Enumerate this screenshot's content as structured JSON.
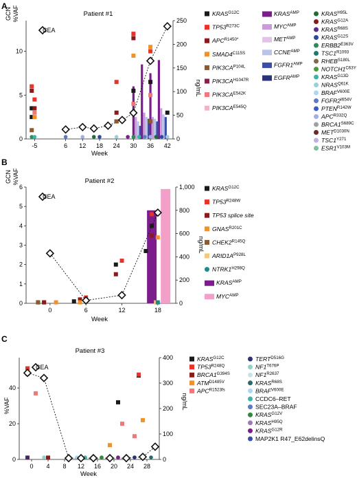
{
  "figure": {
    "panel_A": {
      "letter": "A",
      "title": "Patient #1",
      "y_left_label": "%VAF",
      "y_left_label2": "GCN",
      "y_right_label": "ng/mL",
      "x_label": "Week",
      "cea_label": "CEA",
      "legend_col1": [
        {
          "gene": "KRAS",
          "sup": "G12C",
          "color": "#1a1a1a"
        },
        {
          "gene": "TP53",
          "sup": "R273C",
          "color": "#e8332a"
        },
        {
          "gene": "APC",
          "sup": "R1450*",
          "color": "#8b1a1a"
        },
        {
          "gene": "SMAD4",
          "sup": "C115S",
          "color": "#f0922b"
        },
        {
          "gene": "PIK3CA",
          "sup": "P104L",
          "color": "#8c5a2b"
        },
        {
          "gene": "PIK3CA",
          "sup": "H1047R",
          "color": "#8a1f4d"
        },
        {
          "gene": "PIK3CA",
          "sup": "E542K",
          "color": "#f0787a"
        },
        {
          "gene": "PIK3CA",
          "sup": "E545Q",
          "color": "#f2b3c8"
        }
      ],
      "legend_col2": [
        {
          "gene": "KRAS",
          "sup": "AMP",
          "color": "#7b1e8c"
        },
        {
          "gene": "MYC",
          "sup": "AMP",
          "color": "#c99bd8"
        },
        {
          "gene": "MET",
          "sup": "AMP",
          "color": "#e0c3e6"
        },
        {
          "gene": "CCNE",
          "sup": "AMP",
          "color": "#b9c4e8"
        },
        {
          "gene": "FGFR1",
          "sup": "AMP",
          "color": "#3a4ea8"
        },
        {
          "gene": "EGFR",
          "sup": "AMP",
          "color": "#2b3376"
        }
      ],
      "legend_col3": [
        {
          "gene": "KRAS",
          "sup": "H95L",
          "color": "#1f6b3a"
        },
        {
          "gene": "KRAS",
          "sup": "G12A",
          "color": "#8b1a1a"
        },
        {
          "gene": "KRAS",
          "sup": "R68S",
          "color": "#5a2d8c"
        },
        {
          "gene": "KRAS",
          "sup": "G12S",
          "color": "#2b4a9c"
        },
        {
          "gene": "ERBB2",
          "sup": "E363V",
          "color": "#2e8b57"
        },
        {
          "gene": "TSC1",
          "sup": "R1093",
          "color": "#1f7a6e"
        },
        {
          "gene": "RHEB",
          "sup": "S180L",
          "color": "#7d6b4a"
        },
        {
          "gene": "NOTCH1",
          "sup": "C63Y",
          "color": "#4a9a3a"
        },
        {
          "gene": "KRAS",
          "sup": "G13D",
          "color": "#3cb5a8"
        },
        {
          "gene": "NRAS",
          "sup": "Q61K",
          "color": "#9ad0dc"
        },
        {
          "gene": "BRAF",
          "sup": "V600E",
          "color": "#a9d8f0"
        },
        {
          "gene": "FGFR2",
          "sup": "I654V",
          "color": "#5b7bc4"
        },
        {
          "gene": "PTEN",
          "sup": "R142W",
          "color": "#3a5ac8"
        },
        {
          "gene": "APC",
          "sup": "R332Q",
          "color": "#a5aee0"
        },
        {
          "gene": "BRCA1",
          "sup": "S689C",
          "color": "#a0a0a0"
        },
        {
          "gene": "MET",
          "sup": "D1030N",
          "color": "#6a2a2a"
        },
        {
          "gene": "TSC1",
          "sup": "Y271",
          "color": "#c0b0e0"
        },
        {
          "gene": "ESR1",
          "sup": "V103M",
          "color": "#7fc0a0"
        }
      ]
    },
    "panel_B": {
      "letter": "B",
      "title": "Patient #2",
      "y_left_label": "%VAF",
      "y_left_label2": "GCN",
      "y_right_label": "ng/mL",
      "x_label": "Week",
      "cea_label": "CEA",
      "legend": [
        {
          "gene": "KRAS",
          "sup": "G12C",
          "color": "#1a1a1a",
          "kind": "square"
        },
        {
          "gene": "TP53",
          "sup": "R248W",
          "color": "#e8332a",
          "kind": "square"
        },
        {
          "gene": "TP53 splice site",
          "sup": "",
          "color": "#8b1a1a",
          "kind": "square"
        },
        {
          "gene": "GNAS",
          "sup": "R201C",
          "color": "#f0922b",
          "kind": "square"
        },
        {
          "gene": "CHEK2",
          "sup": "R145Q",
          "color": "#8c5a2b",
          "kind": "square"
        },
        {
          "gene": "ARID1A",
          "sup": "P928L",
          "color": "#f4c97a",
          "kind": "square"
        },
        {
          "gene": "NTRK1",
          "sup": "H298Q",
          "color": "#1f8a8a",
          "kind": "circle"
        },
        {
          "gene": "KRAS",
          "sup": "AMP",
          "color": "#7b1e8c",
          "kind": "bar"
        },
        {
          "gene": "MYC",
          "sup": "AMP",
          "color": "#f2a0c8",
          "kind": "bar"
        }
      ]
    },
    "panel_C": {
      "letter": "C",
      "title": "Patient #3",
      "y_left_label": "%VAF",
      "y_right_label": "ng/mL",
      "x_label": "Week",
      "cea_label": "CEA",
      "legend_col1": [
        {
          "gene": "KRAS",
          "sup": "G12C",
          "color": "#1a1a1a"
        },
        {
          "gene": "TP53",
          "sup": "R248Q",
          "color": "#e8332a"
        },
        {
          "gene": "BRCA1",
          "sup": "G394S",
          "color": "#8b1a1a"
        },
        {
          "gene": "ATM",
          "sup": "D1485V",
          "color": "#f0922b"
        },
        {
          "gene": "APC",
          "sup": "R1523fs",
          "color": "#f0787a"
        }
      ],
      "legend_col2": [
        {
          "gene": "TERT",
          "sup": "D516G",
          "color": "#2b3376"
        },
        {
          "gene": "NF1",
          "sup": "T676P",
          "color": "#8fd3c8"
        },
        {
          "gene": "NF1",
          "sup": "R2637",
          "color": "#c5e6e0"
        },
        {
          "gene": "KRAS",
          "sup": "R68S",
          "color": "#2a6a6a"
        },
        {
          "gene": "BRAF",
          "sup": "V600E",
          "color": "#a9d8f0"
        },
        {
          "gene": "CCDC6–RET",
          "sup": "",
          "color": "#3cb5a8"
        },
        {
          "gene": "SEC23A–BRAF",
          "sup": "",
          "color": "#5b7bc4"
        },
        {
          "gene": "KRAS",
          "sup": "G12V",
          "color": "#2e8b3a"
        },
        {
          "gene": "KRAS",
          "sup": "H95Q",
          "color": "#a07ab8"
        },
        {
          "gene": "KRAS",
          "sup": "G12R",
          "color": "#7b1e8c"
        },
        {
          "gene": "MAP2K1 R47_E62delinsQ",
          "sup": "",
          "color": "#3a4ea8"
        }
      ]
    }
  },
  "chart_data": [
    {
      "type": "scatter",
      "title": "Patient #1",
      "xlabel": "Week",
      "ylabel": "%VAF",
      "ylabel_secondary": "GCN",
      "y2label": "ng/mL",
      "x_ticks": [
        -5,
        6,
        12,
        18,
        24,
        30,
        36,
        42
      ],
      "y_ticks": [
        0,
        5,
        10
      ],
      "y2_ticks": [
        0,
        50,
        100,
        150,
        200,
        250
      ],
      "ylim": [
        0,
        13.5
      ],
      "y2lim": [
        0,
        250
      ],
      "cea_series": {
        "name": "CEA",
        "x": [
          6,
          12,
          16,
          21,
          26,
          30,
          36,
          42
        ],
        "y": [
          20,
          25,
          22,
          28,
          40,
          55,
          165,
          238
        ]
      },
      "cn_bars": [
        {
          "series": "KRAS AMP",
          "x": [
            30,
            33,
            36,
            39
          ],
          "y": [
            6,
            8.5,
            7.5,
            9
          ]
        },
        {
          "series": "MYC AMP",
          "x": [
            30.8,
            33.8,
            36.8,
            39.8
          ],
          "y": [
            2.5,
            3,
            2.5,
            3.5
          ]
        },
        {
          "series": "CCNE AMP",
          "x": [
            31.6,
            34.6,
            37.6,
            40.6
          ],
          "y": [
            2,
            2.5,
            2.3,
            2.8
          ]
        },
        {
          "series": "FGFR1 AMP",
          "x": [
            32.4,
            35.4,
            38.4,
            41.4
          ],
          "y": [
            1.5,
            2.3,
            2,
            2.5
          ]
        }
      ],
      "vaf_points": [
        {
          "series": "KRAS G12C",
          "x": [
            -6,
            -6,
            24,
            30,
            36,
            42
          ],
          "y": [
            2.5,
            3.5,
            2,
            5.5,
            6.5,
            3
          ]
        },
        {
          "series": "TP53 R273C",
          "x": [
            -6,
            -5,
            24,
            30,
            36
          ],
          "y": [
            6,
            4.5,
            6.5,
            12,
            10
          ]
        },
        {
          "series": "APC R1450*",
          "x": [
            -6,
            -5,
            24,
            30,
            36
          ],
          "y": [
            5.5,
            3.5,
            3,
            11.5,
            9
          ]
        },
        {
          "series": "SMAD4 C115S",
          "x": [
            -5,
            30,
            36
          ],
          "y": [
            2.5,
            9.5,
            10.5
          ]
        },
        {
          "series": "PIK3CA P104L",
          "x": [
            -6,
            24,
            36
          ],
          "y": [
            1,
            2,
            2
          ]
        },
        {
          "series": "PIK3CA E542K",
          "x": [
            -5,
            30,
            36
          ],
          "y": [
            3,
            4,
            5
          ]
        }
      ]
    },
    {
      "type": "scatter",
      "title": "Patient #2",
      "xlabel": "Week",
      "ylabel": "%VAF",
      "ylabel_secondary": "GCN",
      "y2label": "ng/mL",
      "x_ticks": [
        0,
        6,
        12,
        18
      ],
      "y_ticks": [
        0,
        1,
        2,
        3,
        4,
        5,
        6
      ],
      "y2_ticks": [
        0,
        200,
        400,
        600,
        800,
        "1,000"
      ],
      "ylim": [
        0,
        6
      ],
      "y2lim": [
        0,
        1000
      ],
      "cea_series": {
        "name": "CEA",
        "x": [
          0,
          6,
          12,
          18
        ],
        "y": [
          430,
          25,
          70,
          780
        ]
      },
      "cn_bars": [
        {
          "series": "KRAS AMP",
          "x": [
            17
          ],
          "y": [
            4.8
          ]
        },
        {
          "series": "MYC AMP",
          "x": [
            19.3
          ],
          "y": [
            5.9
          ]
        }
      ],
      "vaf_points": [
        {
          "series": "KRAS G12C",
          "x": [
            -2,
            4,
            11,
            16,
            17
          ],
          "y": [
            0.05,
            0.1,
            2,
            2.7,
            4
          ]
        },
        {
          "series": "TP53 R248W",
          "x": [
            -1,
            6,
            12,
            17
          ],
          "y": [
            0.05,
            0.3,
            2.2,
            4.6
          ]
        },
        {
          "series": "TP53 splice site",
          "x": [
            -1,
            5,
            11,
            17
          ],
          "y": [
            0.05,
            0.2,
            1.5,
            3.5
          ]
        },
        {
          "series": "GNAS R201C",
          "x": [
            1,
            5,
            18
          ],
          "y": [
            0.05,
            0.05,
            3.4
          ]
        },
        {
          "series": "CHEK2 R145Q",
          "x": [
            -2,
            6
          ],
          "y": [
            0.05,
            0.15
          ]
        },
        {
          "series": "ARID1A P928L",
          "x": [
            17.7
          ],
          "y": [
            0.05
          ]
        },
        {
          "series": "NTRK1 H298Q",
          "x": [
            18
          ],
          "y": [
            0.05
          ]
        }
      ]
    },
    {
      "type": "scatter",
      "title": "Patient #3",
      "xlabel": "Week",
      "ylabel": "%VAF",
      "y2label": "ng/mL",
      "x_ticks": [
        0,
        4,
        8,
        12,
        16,
        20,
        24,
        28
      ],
      "y_ticks": [
        0,
        20,
        40
      ],
      "y2_ticks": [
        0,
        100,
        200,
        300,
        400
      ],
      "ylim": [
        0,
        57
      ],
      "y2lim": [
        0,
        400
      ],
      "cea_series": {
        "name": "CEA",
        "x": [
          -1,
          3,
          9,
          12,
          15,
          19,
          23,
          27,
          30
        ],
        "y": [
          340,
          320,
          5,
          5,
          5,
          5,
          5,
          10,
          50
        ]
      },
      "vaf_points": [
        {
          "series": "KRAS G12C",
          "x": [
            -1,
            21,
            26
          ],
          "y": [
            48,
            32,
            47
          ]
        },
        {
          "series": "TP53 R248Q",
          "x": [
            -1,
            26
          ],
          "y": [
            51,
            47.5
          ]
        },
        {
          "series": "BRCA1 G394S",
          "x": [
            -1,
            4
          ],
          "y": [
            1,
            1
          ]
        },
        {
          "series": "ATM D1485V",
          "x": [
            19,
            27
          ],
          "y": [
            8,
            22
          ]
        },
        {
          "series": "APC R1523fs",
          "x": [
            1,
            22,
            25
          ],
          "y": [
            37,
            20,
            13
          ]
        }
      ]
    }
  ]
}
